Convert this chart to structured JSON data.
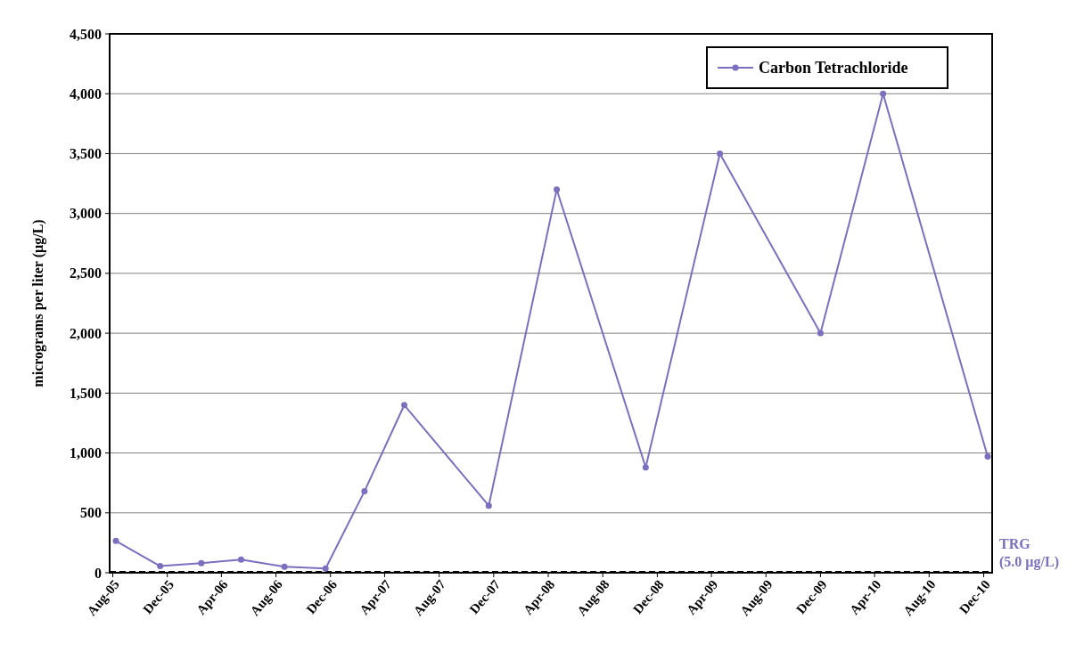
{
  "chart_data": {
    "type": "line",
    "ylabel": "micrograms per liter (µg/L)",
    "x": [
      "2005-08-08",
      "2005-11-15",
      "2006-02-15",
      "2006-05-15",
      "2006-08-20",
      "2006-11-20",
      "2007-02-15",
      "2007-05-15",
      "2007-11-20",
      "2008-04-20",
      "2008-11-05",
      "2009-04-20",
      "2009-12-01",
      "2010-04-20",
      "2010-12-10"
    ],
    "series": [
      {
        "name": "Carbon Tetrachloride",
        "color": "#7b6fbf",
        "values": [
          265,
          55,
          80,
          110,
          50,
          35,
          680,
          1400,
          560,
          3200,
          880,
          3500,
          2000,
          4000,
          970
        ]
      }
    ],
    "xlim": [
      "2005-07-25",
      "2010-12-20"
    ],
    "xticks": [
      {
        "value": "2005-08-01",
        "label": "Aug-05"
      },
      {
        "value": "2005-12-01",
        "label": "Dec-05"
      },
      {
        "value": "2006-04-01",
        "label": "Apr-06"
      },
      {
        "value": "2006-08-01",
        "label": "Aug-06"
      },
      {
        "value": "2006-12-01",
        "label": "Dec-06"
      },
      {
        "value": "2007-04-01",
        "label": "Apr-07"
      },
      {
        "value": "2007-08-01",
        "label": "Aug-07"
      },
      {
        "value": "2007-12-01",
        "label": "Dec-07"
      },
      {
        "value": "2008-04-01",
        "label": "Apr-08"
      },
      {
        "value": "2008-08-01",
        "label": "Aug-08"
      },
      {
        "value": "2008-12-01",
        "label": "Dec-08"
      },
      {
        "value": "2009-04-01",
        "label": "Apr-09"
      },
      {
        "value": "2009-08-01",
        "label": "Aug-09"
      },
      {
        "value": "2009-12-01",
        "label": "Dec-09"
      },
      {
        "value": "2010-04-01",
        "label": "Apr-10"
      },
      {
        "value": "2010-08-01",
        "label": "Aug-10"
      },
      {
        "value": "2010-12-01",
        "label": "Dec-10"
      }
    ],
    "ylim": [
      0,
      4500
    ],
    "yticks": [
      {
        "value": 0,
        "label": "0"
      },
      {
        "value": 500,
        "label": "500"
      },
      {
        "value": 1000,
        "label": "1,000"
      },
      {
        "value": 1500,
        "label": "1,500"
      },
      {
        "value": 2000,
        "label": "2,000"
      },
      {
        "value": 2500,
        "label": "2,500"
      },
      {
        "value": 3000,
        "label": "3,000"
      },
      {
        "value": 3500,
        "label": "3,500"
      },
      {
        "value": 4000,
        "label": "4,000"
      },
      {
        "value": 4500,
        "label": "4,500"
      }
    ],
    "ref_lines": [
      {
        "axis": "y",
        "value": 5,
        "label": "TRG (5.0 µg/L)",
        "line_style": "dashed"
      }
    ],
    "grid": "y",
    "legend": "top right",
    "marker": "circle",
    "line_style": "solid"
  }
}
